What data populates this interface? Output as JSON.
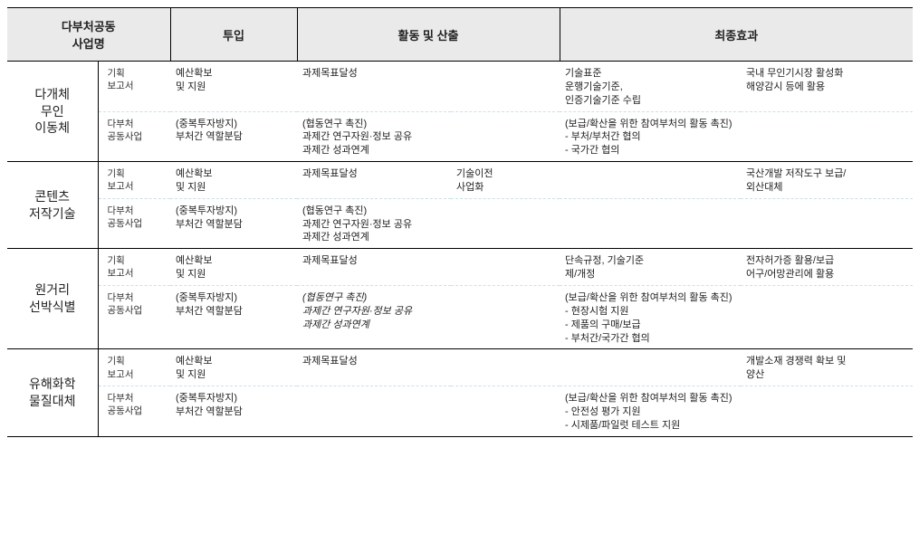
{
  "header": {
    "project": "다부처공동\n사업명",
    "input": "투입",
    "activity": "활동 및 산출",
    "outcome": "최종효과"
  },
  "kind": {
    "plan": "기획\n보고서",
    "joint": "다부처\n공동사업"
  },
  "p1": {
    "name": "다개체\n무인\n이동체",
    "plan": {
      "input": "예산확보\n및 지원",
      "act1": "과제목표달성",
      "act2": "",
      "out1": "기술표준\n운행기술기준,\n인증기술기준 수립",
      "out2": "국내 무인기시장 활성화\n해양감시 등에 활용"
    },
    "joint": {
      "input": "(중복투자방지)\n부처간 역할분담",
      "act1": "(협동연구 촉진)\n과제간 연구자원·정보 공유\n과제간 성과연계",
      "act2": "",
      "out1": "(보급/확산을 위한 참여부처의 활동 촉진)\n- 부처/부처간 협의\n- 국가간 협의",
      "out2": ""
    }
  },
  "p2": {
    "name": "콘텐츠\n저작기술",
    "plan": {
      "input": "예산확보\n및 지원",
      "act1": "과제목표달성",
      "act2": "기술이전\n사업화",
      "out1": "",
      "out2": "국산개발 저작도구 보급/\n외산대체"
    },
    "joint": {
      "input": "(중복투자방지)\n부처간 역할분담",
      "act1": "(협동연구 촉진)\n과제간 연구자원·정보 공유\n과제간 성과연계",
      "act2": "",
      "out1": "",
      "out2": ""
    }
  },
  "p3": {
    "name": "원거리\n선박식별",
    "plan": {
      "input": "예산확보\n및 지원",
      "act1": "과제목표달성",
      "act2": "",
      "out1": "단속규정, 기술기준\n제/개정",
      "out2": "전자허가증 활용/보급\n어구/어망관리에 활용"
    },
    "joint": {
      "input": "(중복투자방지)\n부처간 역할분담",
      "act1_italic": "(협동연구 촉진)\n과제간 연구자원·정보 공유\n과제간 성과연계",
      "out1": "(보급/확산을 위한 참여부처의 활동 촉진)\n- 현장시험 지원\n- 제품의 구매/보급\n- 부처간/국가간 협의",
      "out2": ""
    }
  },
  "p4": {
    "name": "유해화학\n물질대체",
    "plan": {
      "input": "예산확보\n및 지원",
      "act1": "과제목표달성",
      "act2": "",
      "out1": "",
      "out2": "개발소재 경쟁력 확보 및\n양산"
    },
    "joint": {
      "input": "(중복투자방지)\n부처간 역할분담",
      "act1": "",
      "act2": "",
      "out1": "(보급/확산을 위한 참여부처의 활동 촉진)\n- 안전성 평가 지원\n- 시제품/파일럿 테스트 지원",
      "out2": ""
    }
  }
}
